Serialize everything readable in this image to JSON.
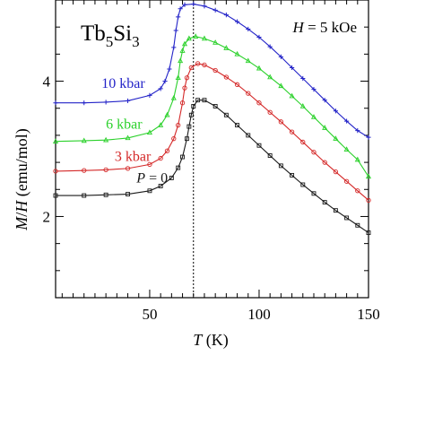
{
  "chart_data": {
    "type": "line",
    "title": {
      "main": "Tb",
      "sub1": "5",
      "mid": "Si",
      "sub2": "3"
    },
    "field": {
      "var": "H",
      "rest": " = 5 kOe"
    },
    "xlabel": {
      "var": "T",
      "unit": " (K)"
    },
    "ylabel": {
      "var1": "M",
      "slash": "/",
      "var2": "H",
      "unit": " (emu/mol)"
    },
    "xlim": [
      7,
      150
    ],
    "ylim": [
      0.8,
      5.2
    ],
    "x_ticks_labeled": [
      50,
      100,
      150
    ],
    "y_ticks_labeled": [
      2,
      4
    ],
    "x_minor_step": 5,
    "y_minor_step": 0.4,
    "vline_x": 70,
    "grid": false,
    "series": [
      {
        "name": "P = 0",
        "label": {
          "var": "P",
          "rest": " = 0"
        },
        "label_pos": [
          44,
          2.5
        ],
        "color": "#1a1a1a",
        "marker": "square",
        "points": [
          [
            7,
            2.31
          ],
          [
            20,
            2.31
          ],
          [
            30,
            2.32
          ],
          [
            40,
            2.33
          ],
          [
            50,
            2.38
          ],
          [
            55,
            2.45
          ],
          [
            60,
            2.57
          ],
          [
            63,
            2.72
          ],
          [
            65,
            2.88
          ],
          [
            67,
            3.15
          ],
          [
            68,
            3.33
          ],
          [
            69,
            3.5
          ],
          [
            70,
            3.63
          ],
          [
            72,
            3.72
          ],
          [
            75,
            3.72
          ],
          [
            80,
            3.63
          ],
          [
            85,
            3.5
          ],
          [
            90,
            3.35
          ],
          [
            95,
            3.2
          ],
          [
            100,
            3.05
          ],
          [
            105,
            2.9
          ],
          [
            110,
            2.75
          ],
          [
            115,
            2.61
          ],
          [
            120,
            2.47
          ],
          [
            125,
            2.34
          ],
          [
            130,
            2.21
          ],
          [
            135,
            2.09
          ],
          [
            140,
            1.98
          ],
          [
            145,
            1.87
          ],
          [
            150,
            1.76
          ]
        ]
      },
      {
        "name": "3 kbar",
        "label": {
          "var": "",
          "rest": "3 kbar"
        },
        "label_pos": [
          34,
          2.82
        ],
        "color": "#d42828",
        "marker": "circle",
        "points": [
          [
            7,
            2.67
          ],
          [
            20,
            2.68
          ],
          [
            30,
            2.69
          ],
          [
            40,
            2.71
          ],
          [
            50,
            2.77
          ],
          [
            55,
            2.86
          ],
          [
            58,
            2.97
          ],
          [
            61,
            3.15
          ],
          [
            63,
            3.35
          ],
          [
            65,
            3.68
          ],
          [
            66,
            3.9
          ],
          [
            67,
            4.05
          ],
          [
            69,
            4.2
          ],
          [
            72,
            4.26
          ],
          [
            75,
            4.24
          ],
          [
            80,
            4.16
          ],
          [
            85,
            4.06
          ],
          [
            90,
            3.95
          ],
          [
            95,
            3.82
          ],
          [
            100,
            3.68
          ],
          [
            105,
            3.54
          ],
          [
            110,
            3.4
          ],
          [
            115,
            3.25
          ],
          [
            120,
            3.1
          ],
          [
            125,
            2.95
          ],
          [
            130,
            2.8
          ],
          [
            135,
            2.66
          ],
          [
            140,
            2.52
          ],
          [
            145,
            2.38
          ],
          [
            150,
            2.24
          ]
        ]
      },
      {
        "name": "6 kbar",
        "label": {
          "var": "",
          "rest": "6 kbar"
        },
        "label_pos": [
          30,
          3.3
        ],
        "color": "#2bd12b",
        "marker": "triangle",
        "points": [
          [
            7,
            3.11
          ],
          [
            20,
            3.12
          ],
          [
            30,
            3.13
          ],
          [
            40,
            3.16
          ],
          [
            50,
            3.24
          ],
          [
            55,
            3.35
          ],
          [
            58,
            3.5
          ],
          [
            61,
            3.75
          ],
          [
            63,
            4.05
          ],
          [
            64,
            4.3
          ],
          [
            65,
            4.45
          ],
          [
            66,
            4.55
          ],
          [
            68,
            4.63
          ],
          [
            71,
            4.66
          ],
          [
            75,
            4.63
          ],
          [
            80,
            4.57
          ],
          [
            85,
            4.49
          ],
          [
            90,
            4.4
          ],
          [
            95,
            4.3
          ],
          [
            100,
            4.19
          ],
          [
            105,
            4.06
          ],
          [
            110,
            3.93
          ],
          [
            115,
            3.78
          ],
          [
            120,
            3.63
          ],
          [
            125,
            3.47
          ],
          [
            130,
            3.31
          ],
          [
            135,
            3.15
          ],
          [
            140,
            2.99
          ],
          [
            145,
            2.84
          ],
          [
            150,
            2.59
          ]
        ]
      },
      {
        "name": "10 kbar",
        "label": {
          "var": "",
          "rest": "10 kbar"
        },
        "label_pos": [
          28,
          3.9
        ],
        "color": "#2323c8",
        "marker": "plus",
        "points": [
          [
            7,
            3.68
          ],
          [
            20,
            3.68
          ],
          [
            30,
            3.69
          ],
          [
            40,
            3.71
          ],
          [
            50,
            3.79
          ],
          [
            55,
            3.89
          ],
          [
            57,
            4.0
          ],
          [
            59,
            4.18
          ],
          [
            61,
            4.5
          ],
          [
            62,
            4.75
          ],
          [
            63,
            4.95
          ],
          [
            64,
            5.07
          ],
          [
            66,
            5.13
          ],
          [
            70,
            5.14
          ],
          [
            75,
            5.11
          ],
          [
            80,
            5.05
          ],
          [
            85,
            4.98
          ],
          [
            90,
            4.88
          ],
          [
            95,
            4.77
          ],
          [
            100,
            4.65
          ],
          [
            105,
            4.51
          ],
          [
            110,
            4.36
          ],
          [
            115,
            4.2
          ],
          [
            120,
            4.04
          ],
          [
            125,
            3.88
          ],
          [
            130,
            3.72
          ],
          [
            135,
            3.56
          ],
          [
            140,
            3.41
          ],
          [
            145,
            3.27
          ],
          [
            150,
            3.17
          ]
        ]
      }
    ]
  }
}
